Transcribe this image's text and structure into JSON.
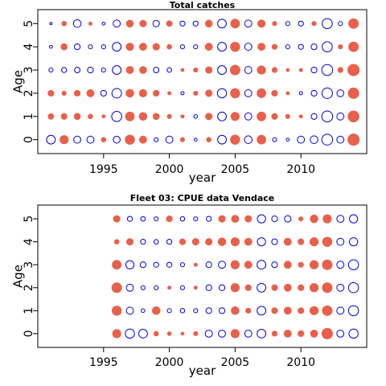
{
  "chart_data": [
    {
      "type": "scatter",
      "title": "Total catches",
      "xlabel": "year",
      "ylabel": "Age",
      "xlim": [
        1990,
        2015
      ],
      "ylim": [
        -0.6,
        5.6
      ],
      "xticks": [
        "1995",
        "2000",
        "2005",
        "2010"
      ],
      "yticks": [
        "0",
        "1",
        "2",
        "3",
        "4",
        "5"
      ],
      "years": [
        1991,
        1992,
        1993,
        1994,
        1995,
        1996,
        1997,
        1998,
        1999,
        2000,
        2001,
        2002,
        2003,
        2004,
        2005,
        2006,
        2007,
        2008,
        2009,
        2010,
        2011,
        2012,
        2013,
        2014
      ],
      "ages": [
        0,
        1,
        2,
        3,
        4,
        5
      ],
      "legend": "none",
      "colors": {
        "positive": "#e8604a",
        "negative": "#0000dd"
      },
      "residuals": [
        [
          -0.45,
          0.4,
          -0.3,
          -0.3,
          0.12,
          -0.28,
          0.5,
          0.3,
          -0.1,
          -0.3,
          0.1,
          -0.05,
          0.12,
          -0.45,
          0.5,
          -0.35,
          0.45,
          -0.1,
          -0.05,
          -0.3,
          -0.35,
          -0.7,
          -0.3,
          0.75
        ],
        [
          0.18,
          0.2,
          0.22,
          0.12,
          0.06,
          -0.6,
          0.45,
          0.35,
          0.22,
          0.1,
          0.06,
          -0.08,
          0.25,
          -0.45,
          0.4,
          -0.3,
          0.45,
          0.2,
          0.1,
          0.06,
          -0.2,
          -0.7,
          -0.3,
          0.7
        ],
        [
          0.2,
          0.1,
          0.2,
          0.3,
          -0.2,
          -0.55,
          0.35,
          0.32,
          0.2,
          0.06,
          -0.06,
          0.1,
          0.25,
          -0.5,
          0.5,
          -0.3,
          0.45,
          0.2,
          0.06,
          -0.06,
          -0.2,
          -0.65,
          -0.28,
          0.65
        ],
        [
          -0.1,
          -0.15,
          -0.18,
          -0.2,
          -0.1,
          -0.45,
          0.3,
          0.28,
          -0.18,
          -0.12,
          0.05,
          0.1,
          0.25,
          -0.45,
          0.55,
          -0.3,
          0.4,
          0.15,
          0.05,
          0.06,
          -0.2,
          -0.7,
          0.15,
          0.75
        ],
        [
          -0.05,
          0.22,
          -0.2,
          -0.1,
          -0.1,
          -0.45,
          0.32,
          0.3,
          0.25,
          0.12,
          -0.1,
          -0.1,
          0.3,
          -0.45,
          0.5,
          -0.3,
          0.3,
          0.15,
          -0.1,
          -0.15,
          -0.2,
          -0.6,
          0.1,
          0.55
        ],
        [
          -0.03,
          0.12,
          -0.35,
          0.06,
          -0.05,
          -0.3,
          0.28,
          0.25,
          -0.25,
          0.18,
          -0.15,
          -0.15,
          0.28,
          -0.45,
          0.45,
          -0.3,
          0.32,
          0.1,
          -0.1,
          -0.15,
          0.1,
          -0.6,
          -0.1,
          0.55
        ]
      ]
    },
    {
      "type": "scatter",
      "title": "Fleet 03:  CPUE data Vendace",
      "xlabel": "year",
      "ylabel": "Age",
      "xlim": [
        1990,
        2015
      ],
      "ylim": [
        -0.6,
        5.6
      ],
      "xticks": [
        "1995",
        "2000",
        "2005",
        "2010"
      ],
      "yticks": [
        "0",
        "1",
        "2",
        "3",
        "4",
        "5"
      ],
      "years": [
        1996,
        1997,
        1998,
        1999,
        2000,
        2001,
        2002,
        2003,
        2004,
        2005,
        2006,
        2007,
        2008,
        2009,
        2010,
        2011,
        2012,
        2013,
        2014
      ],
      "ages": [
        0,
        1,
        2,
        3,
        4,
        5
      ],
      "legend": "none",
      "colors": {
        "positive": "#e8604a",
        "negative": "#0000dd"
      },
      "residuals": [
        [
          0.4,
          -0.5,
          -0.45,
          0.12,
          0.08,
          0.05,
          0.1,
          -0.3,
          -0.3,
          0.4,
          -0.3,
          -0.45,
          0.15,
          0.3,
          0.2,
          0.3,
          0.65,
          -0.3,
          -0.5
        ],
        [
          0.5,
          -0.3,
          -0.08,
          0.35,
          -0.1,
          -0.12,
          -0.1,
          -0.2,
          -0.2,
          0.35,
          0.15,
          -0.45,
          0.2,
          0.3,
          0.2,
          0.4,
          0.55,
          -0.3,
          -0.6
        ],
        [
          0.55,
          -0.3,
          -0.1,
          -0.1,
          0.06,
          -0.1,
          0.06,
          -0.2,
          -0.2,
          0.4,
          0.2,
          -0.45,
          0.2,
          0.3,
          0.2,
          0.4,
          0.55,
          -0.3,
          -0.6
        ],
        [
          0.45,
          -0.4,
          -0.2,
          -0.15,
          -0.15,
          -0.1,
          0.06,
          -0.2,
          -0.3,
          0.4,
          0.3,
          -0.45,
          -0.2,
          0.3,
          0.15,
          0.4,
          0.55,
          -0.3,
          -0.6
        ],
        [
          0.12,
          0.25,
          -0.15,
          -0.12,
          -0.15,
          0.2,
          0.25,
          0.25,
          0.35,
          0.4,
          0.3,
          -0.4,
          -0.2,
          0.3,
          0.2,
          0.4,
          0.5,
          -0.3,
          -0.4
        ],
        [
          0.25,
          -0.15,
          -0.12,
          -0.1,
          0.2,
          -0.12,
          -0.1,
          -0.15,
          0.25,
          0.3,
          0.25,
          -0.4,
          -0.2,
          -0.25,
          0.1,
          0.35,
          0.4,
          -0.3,
          -0.4
        ]
      ]
    }
  ]
}
